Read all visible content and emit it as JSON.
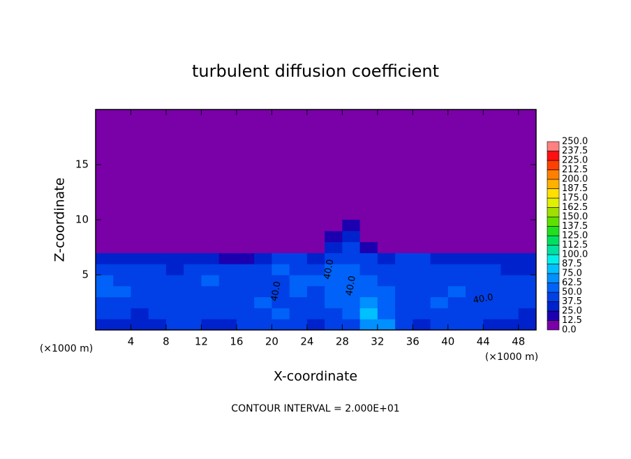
{
  "chart_data": {
    "type": "contour",
    "title": "turbulent diffusion coefficient",
    "xlabel": "X-coordinate",
    "ylabel": "Z-coordinate",
    "x_unit": "(×1000 m)",
    "y_unit": "(×1000 m)",
    "footnote": "CONTOUR INTERVAL = 2.000E+01",
    "xlim": [
      0,
      50
    ],
    "ylim": [
      0,
      20
    ],
    "xticks": [
      4,
      8,
      12,
      16,
      20,
      24,
      28,
      32,
      36,
      40,
      44,
      48
    ],
    "yticks": [
      5,
      10,
      15
    ],
    "xgrid": [
      1,
      3,
      5,
      7,
      9,
      11,
      13,
      15,
      17,
      19,
      21,
      23,
      25,
      27,
      29,
      31,
      33,
      35,
      37,
      39,
      41,
      43,
      45,
      47,
      49
    ],
    "ygrid": [
      0.5,
      1.5,
      2.5,
      3.5,
      4.5,
      5.5,
      6.5,
      7.5,
      8.5,
      9.5
    ],
    "z": [
      [
        30,
        35,
        28,
        32,
        40,
        38,
        30,
        35,
        42,
        40,
        45,
        38,
        35,
        42,
        48,
        70,
        65,
        40,
        35,
        38,
        42,
        40,
        36,
        34,
        30
      ],
      [
        40,
        38,
        35,
        42,
        45,
        40,
        38,
        45,
        40,
        45,
        50,
        42,
        40,
        48,
        55,
        75,
        60,
        45,
        40,
        42,
        45,
        42,
        40,
        38,
        35
      ],
      [
        45,
        42,
        48,
        40,
        38,
        45,
        42,
        40,
        45,
        50,
        45,
        48,
        45,
        50,
        58,
        68,
        55,
        48,
        45,
        50,
        48,
        45,
        42,
        40,
        38
      ],
      [
        50,
        55,
        45,
        42,
        40,
        48,
        45,
        38,
        42,
        45,
        48,
        52,
        48,
        55,
        60,
        55,
        50,
        45,
        42,
        45,
        50,
        48,
        45,
        42,
        40
      ],
      [
        55,
        48,
        40,
        45,
        38,
        42,
        50,
        40,
        38,
        42,
        45,
        55,
        50,
        55,
        58,
        50,
        45,
        40,
        38,
        42,
        45,
        48,
        42,
        40,
        38
      ],
      [
        42,
        40,
        38,
        40,
        35,
        38,
        42,
        38,
        40,
        45,
        50,
        48,
        45,
        50,
        52,
        45,
        40,
        42,
        45,
        40,
        42,
        40,
        38,
        36,
        35
      ],
      [
        35,
        30,
        32,
        35,
        30,
        28,
        25,
        20,
        18,
        30,
        42,
        40,
        35,
        42,
        48,
        40,
        32,
        38,
        40,
        35,
        30,
        28,
        32,
        30,
        28
      ],
      [
        8,
        5,
        6,
        4,
        5,
        3,
        2,
        2,
        2,
        4,
        8,
        6,
        10,
        25,
        40,
        20,
        6,
        8,
        5,
        4,
        3,
        3,
        4,
        3,
        2
      ],
      [
        0,
        0,
        0,
        0,
        0,
        0,
        0,
        0,
        0,
        0,
        0,
        0,
        2,
        15,
        35,
        10,
        0,
        0,
        0,
        0,
        0,
        0,
        0,
        0,
        0
      ],
      [
        0,
        0,
        0,
        0,
        0,
        0,
        0,
        0,
        0,
        0,
        0,
        0,
        0,
        8,
        20,
        4,
        0,
        0,
        0,
        0,
        0,
        0,
        0,
        0,
        0
      ]
    ],
    "contour_labels": [
      "40.0",
      "40.0",
      "40.0",
      "40.0"
    ],
    "colorbar": {
      "levels": [
        {
          "value": 0,
          "label": "0.0"
        },
        12.5,
        {
          "value": 25,
          "label": "25.0"
        },
        37.5,
        {
          "value": 50,
          "label": "50.0"
        },
        62.5,
        {
          "value": 75,
          "label": "75.0"
        },
        87.5,
        {
          "value": 100,
          "label": "100.0"
        },
        112.5,
        {
          "value": 125,
          "label": "125.0"
        },
        137.5,
        {
          "value": 150,
          "label": "150.0"
        },
        162.5,
        {
          "value": 175,
          "label": "175.0"
        },
        187.5,
        {
          "value": 200,
          "label": "200.0"
        },
        212.5,
        {
          "value": 225,
          "label": "225.0"
        },
        237.5,
        {
          "value": 250,
          "label": "250.0"
        }
      ],
      "colors": [
        "#7a00a8",
        "#1c00b0",
        "#0022cc",
        "#0040e6",
        "#0062f8",
        "#0090ff",
        "#00c0ff",
        "#00f0e8",
        "#00e0a0",
        "#00e060",
        "#20e020",
        "#60e000",
        "#a0e000",
        "#e0f000",
        "#ffe000",
        "#ffb000",
        "#ff8000",
        "#ff4000",
        "#ff1010",
        "#ff8080"
      ]
    }
  }
}
